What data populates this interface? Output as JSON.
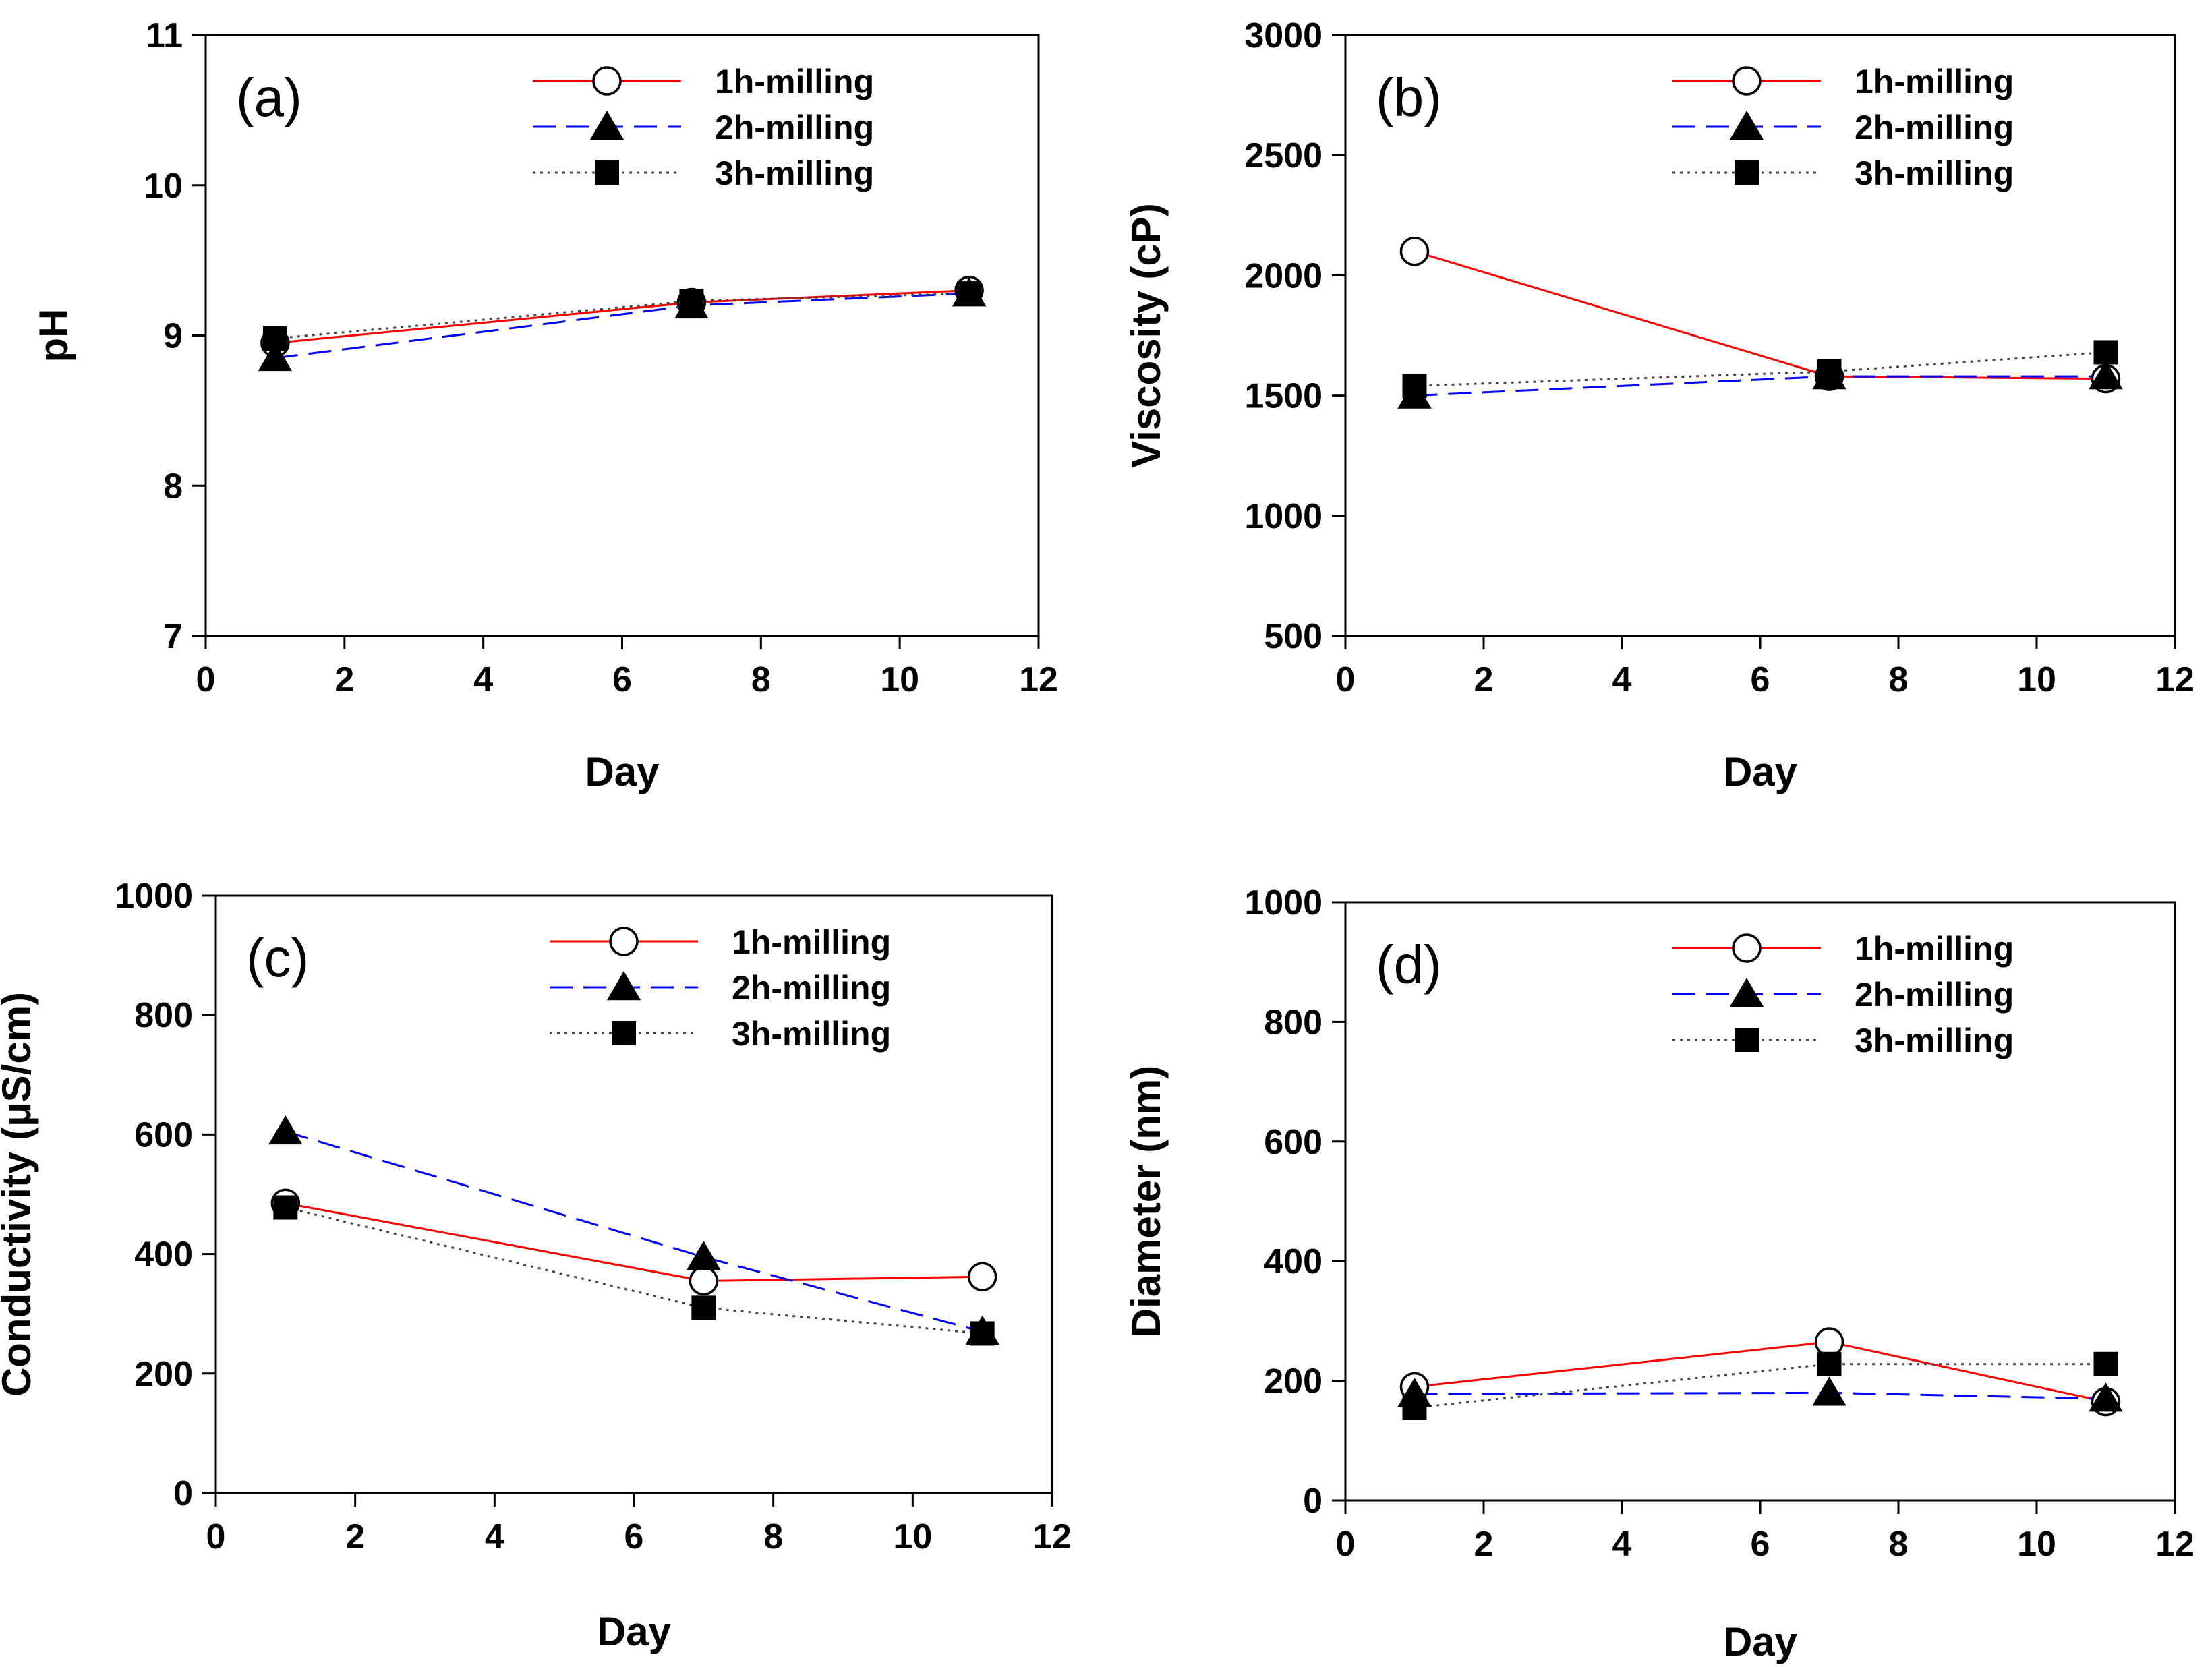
{
  "colors": {
    "series1": "#ff0000",
    "series2": "#0000ff",
    "series3": "#444444",
    "axis": "#000000"
  },
  "chart_data": [
    {
      "type": "line",
      "panel_label": "(a)",
      "xlabel": "Day",
      "ylabel": "pH",
      "xlim": [
        0,
        12
      ],
      "ylim": [
        7,
        11
      ],
      "xticks": [
        0,
        2,
        4,
        6,
        8,
        10,
        12
      ],
      "yticks": [
        7,
        8,
        9,
        10,
        11
      ],
      "grid": false,
      "legend": "top-right",
      "series": [
        {
          "name": "1h-milling",
          "marker": "circle-open",
          "line": "solid",
          "x": [
            1,
            7,
            11
          ],
          "values": [
            8.95,
            9.22,
            9.3
          ]
        },
        {
          "name": "2h-milling",
          "marker": "triangle",
          "line": "dashed",
          "x": [
            1,
            7,
            11
          ],
          "values": [
            8.85,
            9.2,
            9.28
          ]
        },
        {
          "name": "3h-milling",
          "marker": "square",
          "line": "dotted",
          "x": [
            1,
            7,
            11
          ],
          "values": [
            8.98,
            9.23,
            9.28
          ]
        }
      ]
    },
    {
      "type": "line",
      "panel_label": "(b)",
      "xlabel": "Day",
      "ylabel": "Viscosity (cP)",
      "xlim": [
        0,
        12
      ],
      "ylim": [
        500,
        3000
      ],
      "xticks": [
        0,
        2,
        4,
        6,
        8,
        10,
        12
      ],
      "yticks": [
        500,
        1000,
        1500,
        2000,
        2500,
        3000
      ],
      "grid": false,
      "legend": "top-right",
      "series": [
        {
          "name": "1h-milling",
          "marker": "circle-open",
          "line": "solid",
          "x": [
            1,
            7,
            11
          ],
          "values": [
            2100,
            1580,
            1570
          ]
        },
        {
          "name": "2h-milling",
          "marker": "triangle",
          "line": "dashed",
          "x": [
            1,
            7,
            11
          ],
          "values": [
            1500,
            1580,
            1580
          ]
        },
        {
          "name": "3h-milling",
          "marker": "square",
          "line": "dotted",
          "x": [
            1,
            7,
            11
          ],
          "values": [
            1540,
            1600,
            1680
          ]
        }
      ]
    },
    {
      "type": "line",
      "panel_label": "(c)",
      "xlabel": "Day",
      "ylabel": "Conductivity (μS/cm)",
      "xlim": [
        0,
        12
      ],
      "ylim": [
        0,
        1000
      ],
      "xticks": [
        0,
        2,
        4,
        6,
        8,
        10,
        12
      ],
      "yticks": [
        0,
        200,
        400,
        600,
        800,
        1000
      ],
      "grid": false,
      "legend": "top-right",
      "series": [
        {
          "name": "1h-milling",
          "marker": "circle-open",
          "line": "solid",
          "x": [
            1,
            7,
            11
          ],
          "values": [
            485,
            355,
            362
          ]
        },
        {
          "name": "2h-milling",
          "marker": "triangle",
          "line": "dashed",
          "x": [
            1,
            7,
            11
          ],
          "values": [
            605,
            395,
            270
          ]
        },
        {
          "name": "3h-milling",
          "marker": "square",
          "line": "dotted",
          "x": [
            1,
            7,
            11
          ],
          "values": [
            478,
            310,
            267
          ]
        }
      ]
    },
    {
      "type": "line",
      "panel_label": "(d)",
      "xlabel": "Day",
      "ylabel": "Diameter (nm)",
      "xlim": [
        0,
        12
      ],
      "ylim": [
        0,
        1000
      ],
      "xticks": [
        0,
        2,
        4,
        6,
        8,
        10,
        12
      ],
      "yticks": [
        0,
        200,
        400,
        600,
        800,
        1000
      ],
      "grid": false,
      "legend": "top-right",
      "series": [
        {
          "name": "1h-milling",
          "marker": "circle-open",
          "line": "solid",
          "x": [
            1,
            7,
            11
          ],
          "values": [
            190,
            265,
            165
          ]
        },
        {
          "name": "2h-milling",
          "marker": "triangle",
          "line": "dashed",
          "x": [
            1,
            7,
            11
          ],
          "values": [
            178,
            180,
            170
          ]
        },
        {
          "name": "3h-milling",
          "marker": "square",
          "line": "dotted",
          "x": [
            1,
            7,
            11
          ],
          "values": [
            155,
            228,
            228
          ]
        }
      ]
    }
  ]
}
